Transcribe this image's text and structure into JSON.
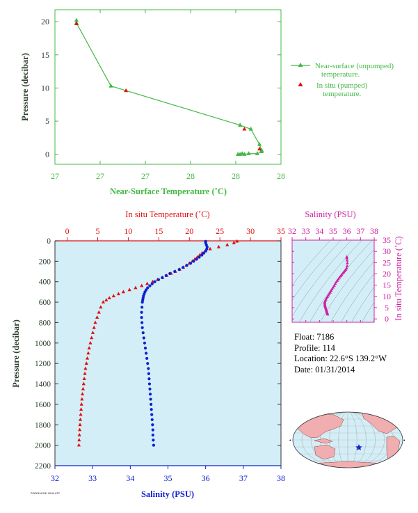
{
  "colors": {
    "green": "#44b844",
    "red": "#e01010",
    "blue": "#1020d0",
    "magenta": "#d020a0",
    "panel_bg": "#d3eef7",
    "dark_axis": "#2c3e2c"
  },
  "info": {
    "float": "Float:  7186",
    "profile": "Profile:  114",
    "location": "Location:  22.6°S  139.2°W",
    "date": "Date:  01/31/2014"
  },
  "footnote": "PSI/2014/01/31 09:00 UTC",
  "map_marker_icon": "blue-star-icon",
  "chart_data": [
    {
      "id": "near_surface",
      "type": "line",
      "xlabel": "Near-Surface Temperature (˚C)",
      "ylabel": "Pressure (decibar)",
      "xticks": [
        "27",
        "27",
        "27",
        "28",
        "28",
        "28"
      ],
      "xlim": [
        26.95,
        28.0
      ],
      "yticks": [
        "0",
        "5",
        "10",
        "15",
        "20"
      ],
      "ylim": [
        21.8,
        -1.5
      ],
      "legend_position": "right",
      "legend": {
        "unpumped": "Near-surface (unpumped)",
        "unpumped_2": "temperature.",
        "pumped": "In situ (pumped)",
        "pumped_2": "temperature."
      },
      "series": [
        {
          "name": "Near-surface (unpumped) temperature.",
          "marker": "triangle",
          "color": "#44b844",
          "points": [
            [
              27.05,
              20.2
            ],
            [
              27.05,
              19.8
            ],
            [
              27.21,
              10.3
            ],
            [
              27.81,
              4.4
            ],
            [
              27.86,
              3.8
            ],
            [
              27.9,
              1.5
            ],
            [
              27.91,
              0.6
            ],
            [
              27.91,
              0.4
            ],
            [
              27.89,
              0.1
            ],
            [
              27.85,
              0.1
            ],
            [
              27.83,
              0.0
            ],
            [
              27.81,
              0.0
            ],
            [
              27.82,
              0.1
            ],
            [
              27.8,
              0.0
            ]
          ]
        },
        {
          "name": "In situ (pumped) temperature.",
          "marker": "triangle",
          "color": "#e01010",
          "points": [
            [
              27.05,
              19.7
            ],
            [
              27.28,
              9.6
            ],
            [
              27.83,
              3.8
            ],
            [
              27.9,
              0.8
            ]
          ]
        }
      ]
    },
    {
      "id": "main_profile",
      "type": "scatter",
      "top_axis_label": "In situ Temperature (˚C)",
      "bottom_axis_label": "Salinity (PSU)",
      "ylabel": "Pressure (decibar)",
      "temperature_ticks": [
        "0",
        "5",
        "10",
        "15",
        "20",
        "25",
        "30",
        "35"
      ],
      "temperature_range": [
        -2,
        35
      ],
      "salinity_ticks": [
        "32",
        "33",
        "34",
        "35",
        "36",
        "37",
        "38"
      ],
      "salinity_range": [
        32,
        38
      ],
      "pressure_ticks": [
        "0",
        "200",
        "400",
        "600",
        "800",
        "1000",
        "1200",
        "1400",
        "1600",
        "1800",
        "2000",
        "2200"
      ],
      "pressure_range": [
        0,
        2200
      ],
      "series": [
        {
          "name": "In situ Temperature (˚C)",
          "marker": "triangle",
          "color": "#e01010",
          "points": [
            [
              27.8,
              5
            ],
            [
              27.3,
              20
            ],
            [
              26.2,
              40
            ],
            [
              24.8,
              60
            ],
            [
              23.4,
              80
            ],
            [
              22.6,
              100
            ],
            [
              22.1,
              120
            ],
            [
              21.7,
              140
            ],
            [
              21.3,
              160
            ],
            [
              20.9,
              180
            ],
            [
              20.5,
              200
            ],
            [
              20.0,
              220
            ],
            [
              19.5,
              240
            ],
            [
              19.0,
              260
            ],
            [
              18.4,
              280
            ],
            [
              17.7,
              300
            ],
            [
              17.0,
              320
            ],
            [
              16.3,
              340
            ],
            [
              15.6,
              360
            ],
            [
              14.8,
              380
            ],
            [
              14.0,
              400
            ],
            [
              13.1,
              420
            ],
            [
              12.2,
              440
            ],
            [
              11.2,
              460
            ],
            [
              10.2,
              480
            ],
            [
              9.2,
              500
            ],
            [
              8.4,
              520
            ],
            [
              7.6,
              540
            ],
            [
              6.9,
              560
            ],
            [
              6.4,
              580
            ],
            [
              5.9,
              600
            ],
            [
              5.5,
              650
            ],
            [
              5.2,
              700
            ],
            [
              4.9,
              750
            ],
            [
              4.6,
              800
            ],
            [
              4.4,
              850
            ],
            [
              4.2,
              900
            ],
            [
              4.0,
              950
            ],
            [
              3.8,
              1000
            ],
            [
              3.6,
              1050
            ],
            [
              3.45,
              1100
            ],
            [
              3.3,
              1150
            ],
            [
              3.15,
              1200
            ],
            [
              3.0,
              1250
            ],
            [
              2.9,
              1300
            ],
            [
              2.8,
              1350
            ],
            [
              2.7,
              1400
            ],
            [
              2.6,
              1450
            ],
            [
              2.5,
              1500
            ],
            [
              2.42,
              1550
            ],
            [
              2.35,
              1600
            ],
            [
              2.28,
              1650
            ],
            [
              2.22,
              1700
            ],
            [
              2.16,
              1750
            ],
            [
              2.1,
              1800
            ],
            [
              2.05,
              1850
            ],
            [
              2.0,
              1900
            ],
            [
              1.96,
              1950
            ],
            [
              1.92,
              2000
            ]
          ]
        },
        {
          "name": "Salinity (PSU)",
          "marker": "dot",
          "color": "#1020d0",
          "points": [
            [
              36.0,
              5
            ],
            [
              36.0,
              20
            ],
            [
              36.02,
              40
            ],
            [
              36.04,
              60
            ],
            [
              36.03,
              80
            ],
            [
              36.0,
              100
            ],
            [
              35.95,
              120
            ],
            [
              35.9,
              140
            ],
            [
              35.83,
              160
            ],
            [
              35.76,
              180
            ],
            [
              35.68,
              200
            ],
            [
              35.6,
              220
            ],
            [
              35.5,
              240
            ],
            [
              35.4,
              260
            ],
            [
              35.3,
              280
            ],
            [
              35.18,
              300
            ],
            [
              35.05,
              320
            ],
            [
              34.95,
              340
            ],
            [
              34.85,
              360
            ],
            [
              34.75,
              380
            ],
            [
              34.65,
              400
            ],
            [
              34.58,
              420
            ],
            [
              34.52,
              440
            ],
            [
              34.46,
              460
            ],
            [
              34.42,
              480
            ],
            [
              34.39,
              500
            ],
            [
              34.37,
              520
            ],
            [
              34.35,
              540
            ],
            [
              34.34,
              560
            ],
            [
              34.33,
              580
            ],
            [
              34.32,
              600
            ],
            [
              34.31,
              650
            ],
            [
              34.3,
              700
            ],
            [
              34.3,
              750
            ],
            [
              34.31,
              800
            ],
            [
              34.32,
              850
            ],
            [
              34.34,
              900
            ],
            [
              34.36,
              950
            ],
            [
              34.38,
              1000
            ],
            [
              34.4,
              1050
            ],
            [
              34.42,
              1100
            ],
            [
              34.44,
              1150
            ],
            [
              34.46,
              1200
            ],
            [
              34.48,
              1250
            ],
            [
              34.49,
              1300
            ],
            [
              34.5,
              1350
            ],
            [
              34.51,
              1400
            ],
            [
              34.52,
              1450
            ],
            [
              34.53,
              1500
            ],
            [
              34.54,
              1550
            ],
            [
              34.55,
              1600
            ],
            [
              34.56,
              1650
            ],
            [
              34.57,
              1700
            ],
            [
              34.58,
              1750
            ],
            [
              34.59,
              1800
            ],
            [
              34.6,
              1850
            ],
            [
              34.6,
              1900
            ],
            [
              34.61,
              1950
            ],
            [
              34.62,
              2000
            ]
          ]
        }
      ]
    },
    {
      "id": "ts_diagram",
      "type": "scatter",
      "title": "Salinity (PSU)",
      "ylabel": "In situ Temperature (˚C)",
      "xticks": [
        "32",
        "33",
        "34",
        "35",
        "36",
        "37",
        "38"
      ],
      "xlim": [
        32,
        38
      ],
      "yticks": [
        "0",
        "5",
        "10",
        "15",
        "20",
        "25",
        "30",
        "35"
      ],
      "ylim": [
        -1.5,
        35
      ],
      "series": [
        {
          "name": "T-S",
          "marker": "triangle",
          "color": "#d020a0",
          "points": [
            [
              34.6,
              2.0
            ],
            [
              34.58,
              2.4
            ],
            [
              34.56,
              2.8
            ],
            [
              34.54,
              3.2
            ],
            [
              34.52,
              3.6
            ],
            [
              34.5,
              4.0
            ],
            [
              34.48,
              4.4
            ],
            [
              34.46,
              4.8
            ],
            [
              34.44,
              5.2
            ],
            [
              34.42,
              5.6
            ],
            [
              34.4,
              6.0
            ],
            [
              34.39,
              6.5
            ],
            [
              34.38,
              7.0
            ],
            [
              34.39,
              7.5
            ],
            [
              34.42,
              8.0
            ],
            [
              34.46,
              8.6
            ],
            [
              34.52,
              9.2
            ],
            [
              34.58,
              9.8
            ],
            [
              34.65,
              10.5
            ],
            [
              34.72,
              11.2
            ],
            [
              34.78,
              11.8
            ],
            [
              34.85,
              12.5
            ],
            [
              34.92,
              13.2
            ],
            [
              35.0,
              14.0
            ],
            [
              35.08,
              14.8
            ],
            [
              35.15,
              15.6
            ],
            [
              35.22,
              16.3
            ],
            [
              35.3,
              17.0
            ],
            [
              35.38,
              17.7
            ],
            [
              35.46,
              18.4
            ],
            [
              35.55,
              19.0
            ],
            [
              35.62,
              19.6
            ],
            [
              35.7,
              20.2
            ],
            [
              35.78,
              20.8
            ],
            [
              35.85,
              21.3
            ],
            [
              35.92,
              21.9
            ],
            [
              35.98,
              22.5
            ],
            [
              36.02,
              23.5
            ],
            [
              36.04,
              24.8
            ],
            [
              36.02,
              26.0
            ],
            [
              36.0,
              27.0
            ],
            [
              36.0,
              27.6
            ]
          ]
        }
      ]
    }
  ]
}
